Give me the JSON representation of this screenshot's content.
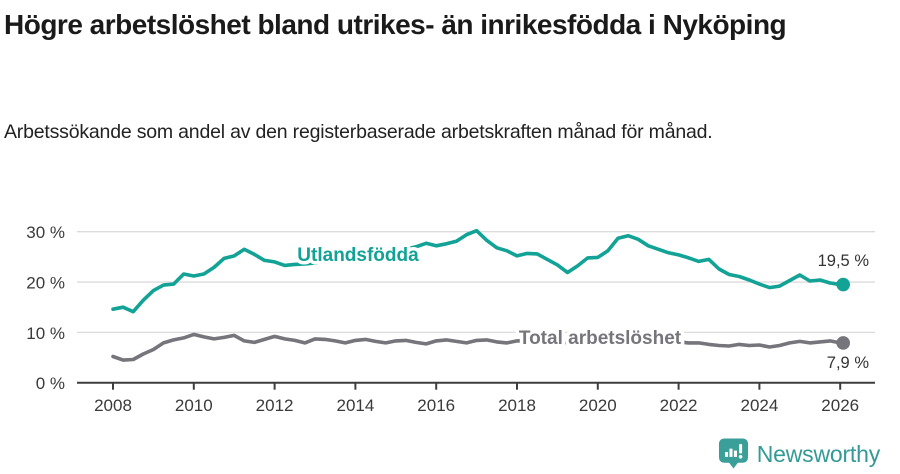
{
  "header": {
    "title": "Högre arbetslöshet bland utrikes- än inrikesfödda i Nyköping",
    "subtitle": "Arbetssökande som andel av den registerbaserade arbetskraften månad för månad."
  },
  "chart_data": {
    "type": "line",
    "unit": "%",
    "title": "Högre arbetslöshet bland utrikes- än inrikesfödda i Nyköping",
    "xlabel": "",
    "ylabel": "",
    "xlim": [
      2008,
      2026.9
    ],
    "ylim": [
      0,
      32
    ],
    "grid": "horizontal",
    "x_ticks": [
      2008,
      2010,
      2012,
      2014,
      2016,
      2018,
      2020,
      2022,
      2024,
      2026
    ],
    "x_tick_labels": [
      "2008",
      "2010",
      "2012",
      "2014",
      "2016",
      "2018",
      "2020",
      "2022",
      "2024",
      "2026"
    ],
    "y_ticks": [
      {
        "value": 0,
        "label": "0 %"
      },
      {
        "value": 10,
        "label": "10 %"
      },
      {
        "value": 20,
        "label": "20 %"
      },
      {
        "value": 30,
        "label": "30 %"
      }
    ],
    "x": [
      2008,
      2008.25,
      2008.5,
      2008.75,
      2009,
      2009.25,
      2009.5,
      2009.75,
      2010,
      2010.25,
      2010.5,
      2010.75,
      2011,
      2011.25,
      2011.5,
      2011.75,
      2012,
      2012.25,
      2012.5,
      2012.75,
      2013,
      2013.25,
      2013.5,
      2013.75,
      2014,
      2014.25,
      2014.5,
      2014.75,
      2015,
      2015.25,
      2015.5,
      2015.75,
      2016,
      2016.25,
      2016.5,
      2016.75,
      2017,
      2017.25,
      2017.5,
      2017.75,
      2018,
      2018.25,
      2018.5,
      2018.75,
      2019,
      2019.25,
      2019.5,
      2019.75,
      2020,
      2020.25,
      2020.5,
      2020.75,
      2021,
      2021.25,
      2021.5,
      2021.75,
      2022,
      2022.25,
      2022.5,
      2022.75,
      2023,
      2023.25,
      2023.5,
      2023.75,
      2024,
      2024.25,
      2024.5,
      2024.75,
      2025,
      2025.25,
      2025.5,
      2025.75,
      2026
    ],
    "series": [
      {
        "name": "Utlandsfödda",
        "color": "#12A296",
        "end_label": "19,5 %",
        "end_value": 19.5,
        "values": [
          14.6,
          15,
          14.1,
          16.4,
          18.3,
          19.4,
          19.6,
          21.6,
          21.2,
          21.6,
          22.9,
          24.7,
          25.2,
          26.5,
          25.5,
          24.3,
          24,
          23.3,
          23.5,
          23.6,
          23.8,
          24,
          24.2,
          24.5,
          24.7,
          25,
          25.2,
          25.6,
          26,
          26.5,
          27,
          27.7,
          27.2,
          27.6,
          28.1,
          29.4,
          30.2,
          28.3,
          26.8,
          26.2,
          25.2,
          25.7,
          25.6,
          24.5,
          23.4,
          21.9,
          23.2,
          24.8,
          24.9,
          26.2,
          28.7,
          29.2,
          28.5,
          27.2,
          26.5,
          25.8,
          25.4,
          24.8,
          24.1,
          24.5,
          22.6,
          21.5,
          21.1,
          20.4,
          19.6,
          18.9,
          19.2,
          20.3,
          21.4,
          20.2,
          20.4,
          19.8,
          19.5
        ]
      },
      {
        "name": "Total arbetslöshet",
        "color": "#76757B",
        "end_label": "7,9 %",
        "end_value": 7.9,
        "values": [
          5.2,
          4.5,
          4.6,
          5.7,
          6.6,
          7.9,
          8.5,
          8.9,
          9.6,
          9.1,
          8.7,
          9,
          9.4,
          8.3,
          8,
          8.6,
          9.2,
          8.7,
          8.4,
          7.9,
          8.7,
          8.6,
          8.3,
          7.9,
          8.4,
          8.6,
          8.2,
          7.9,
          8.3,
          8.4,
          8,
          7.7,
          8.3,
          8.5,
          8.2,
          7.9,
          8.4,
          8.5,
          8.1,
          7.9,
          8.3,
          8.4,
          8.1,
          7.8,
          8,
          8,
          8.2,
          8.5,
          8.6,
          9.2,
          9.3,
          9,
          8.9,
          8.7,
          8.4,
          8.2,
          8.1,
          7.9,
          7.9,
          7.6,
          7.4,
          7.3,
          7.6,
          7.4,
          7.5,
          7.1,
          7.4,
          7.9,
          8.2,
          7.9,
          8.1,
          8.3,
          7.9
        ]
      }
    ],
    "legend_position": "inline-labels-on-lines"
  },
  "footer": {
    "brand": "Newsworthy",
    "brand_color": "#339A95",
    "logo_color": "#3A9E99"
  },
  "colors": {
    "accent_teal": "#12A296",
    "line_gray": "#76757B",
    "axis": "#3D3D3D",
    "gridline": "#DCDCDC",
    "tick_text": "#3A3A3A"
  }
}
